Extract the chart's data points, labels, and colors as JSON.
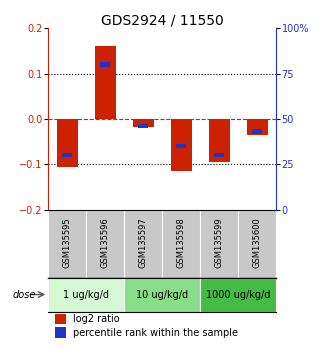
{
  "title": "GDS2924 / 11550",
  "samples": [
    "GSM135595",
    "GSM135596",
    "GSM135597",
    "GSM135598",
    "GSM135599",
    "GSM135600"
  ],
  "log2_ratio": [
    -0.105,
    0.162,
    -0.018,
    -0.115,
    -0.095,
    -0.035
  ],
  "percentile_rank": [
    30,
    80,
    46,
    35,
    30,
    43
  ],
  "bar_color": "#cc2200",
  "blue_color": "#2233cc",
  "ylim_left": [
    -0.2,
    0.2
  ],
  "ylim_right": [
    0,
    100
  ],
  "yticks_left": [
    -0.2,
    -0.1,
    0,
    0.1,
    0.2
  ],
  "yticks_right": [
    0,
    25,
    50,
    75,
    100
  ],
  "ytick_labels_right": [
    "0",
    "25",
    "50",
    "75",
    "100%"
  ],
  "hlines_dotted": [
    0.1,
    -0.1
  ],
  "hline_dashed": 0.0,
  "dose_groups": [
    {
      "label": "1 ug/kg/d",
      "samples": [
        0,
        1
      ],
      "color": "#d4f7d4"
    },
    {
      "label": "10 ug/kg/d",
      "samples": [
        2,
        3
      ],
      "color": "#88dd88"
    },
    {
      "label": "1000 ug/kg/d",
      "samples": [
        4,
        5
      ],
      "color": "#44bb44"
    }
  ],
  "dose_label": "dose",
  "legend_red": "log2 ratio",
  "legend_blue": "percentile rank within the sample",
  "bar_width": 0.55,
  "title_fontsize": 10,
  "tick_fontsize": 7,
  "sample_fontsize": 6,
  "dose_fontsize": 7,
  "legend_fontsize": 7
}
